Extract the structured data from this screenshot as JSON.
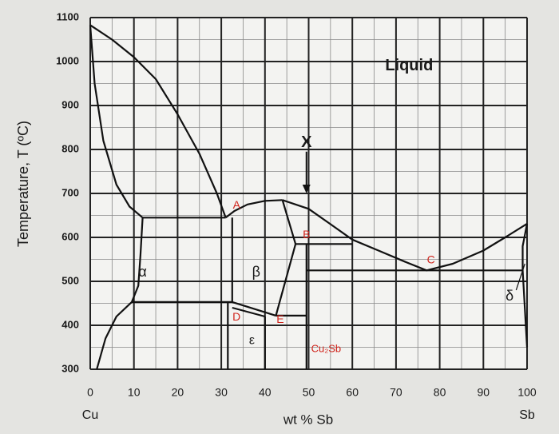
{
  "chart_data": {
    "type": "line",
    "y_label": "Temperature, T (ºC)",
    "x_label": "wt % Sb",
    "x_end_labels": [
      "Cu",
      "Sb"
    ],
    "xlim": [
      0,
      100
    ],
    "xticks": [
      0,
      10,
      20,
      30,
      40,
      50,
      60,
      70,
      80,
      90,
      100
    ],
    "ylim": [
      300,
      1100
    ],
    "yticks": [
      300,
      400,
      500,
      600,
      700,
      800,
      900,
      1000,
      1100
    ],
    "grid": true,
    "line_color": "#111111",
    "lines": [
      {
        "x": [
          0,
          5,
          10,
          15,
          20,
          25,
          29,
          31
        ],
        "y": [
          1083,
          1050,
          1010,
          960,
          880,
          790,
          700,
          645
        ]
      },
      {
        "x": [
          0,
          1,
          3,
          6,
          9,
          12
        ],
        "y": [
          1083,
          950,
          820,
          720,
          670,
          645
        ]
      },
      {
        "x": [
          12,
          31
        ],
        "y": [
          645,
          645
        ]
      },
      {
        "x": [
          12,
          11.5,
          11,
          9.5
        ],
        "y": [
          645,
          560,
          490,
          453
        ]
      },
      {
        "x": [
          9.5,
          6,
          3.5,
          1.5
        ],
        "y": [
          453,
          420,
          370,
          300
        ]
      },
      {
        "x": [
          9.5,
          32.5
        ],
        "y": [
          453,
          453
        ]
      },
      {
        "x": [
          31,
          33,
          36,
          40,
          44
        ],
        "y": [
          645,
          660,
          675,
          683,
          685
        ]
      },
      {
        "x": [
          44,
          50,
          55,
          60,
          66,
          72,
          77,
          83,
          90,
          95,
          100
        ],
        "y": [
          685,
          665,
          630,
          595,
          570,
          545,
          525,
          540,
          570,
          600,
          631
        ]
      },
      {
        "x": [
          32.5,
          32.5
        ],
        "y": [
          645,
          453
        ]
      },
      {
        "x": [
          44,
          47
        ],
        "y": [
          685,
          585
        ]
      },
      {
        "x": [
          47,
          60
        ],
        "y": [
          585,
          585
        ]
      },
      {
        "x": [
          47,
          42.5
        ],
        "y": [
          585,
          422
        ]
      },
      {
        "x": [
          32.5,
          42.5
        ],
        "y": [
          453,
          422
        ]
      },
      {
        "x": [
          32.5,
          40
        ],
        "y": [
          440,
          420
        ]
      },
      {
        "x": [
          42.5,
          49.5
        ],
        "y": [
          422,
          422
        ]
      },
      {
        "x": [
          49.5,
          49.5
        ],
        "y": [
          585,
          300
        ]
      },
      {
        "x": [
          31.5,
          31.5
        ],
        "y": [
          453,
          300
        ]
      },
      {
        "x": [
          40,
          40
        ],
        "y": [
          420,
          300
        ]
      },
      {
        "x": [
          49.5,
          99
        ],
        "y": [
          525,
          525
        ]
      },
      {
        "x": [
          100,
          99,
          99,
          100
        ],
        "y": [
          631,
          580,
          525,
          350
        ]
      }
    ],
    "annotations": [
      {
        "text": "Liquid",
        "color": "#1a1a1a"
      },
      {
        "text": "α",
        "color": "#1a1a1a"
      },
      {
        "text": "β",
        "color": "#1a1a1a"
      },
      {
        "text": "ε",
        "color": "#1a1a1a"
      },
      {
        "text": "δ",
        "color": "#1a1a1a"
      },
      {
        "text": "Cu₂Sb",
        "color": "#d0241c"
      },
      {
        "text": "A",
        "color": "#d0241c"
      },
      {
        "text": "B",
        "color": "#d0241c"
      },
      {
        "text": "C",
        "color": "#d0241c"
      },
      {
        "text": "D",
        "color": "#d0241c"
      },
      {
        "text": "E",
        "color": "#d0241c"
      },
      {
        "text": "X",
        "color": "#1a1a1a"
      }
    ]
  }
}
